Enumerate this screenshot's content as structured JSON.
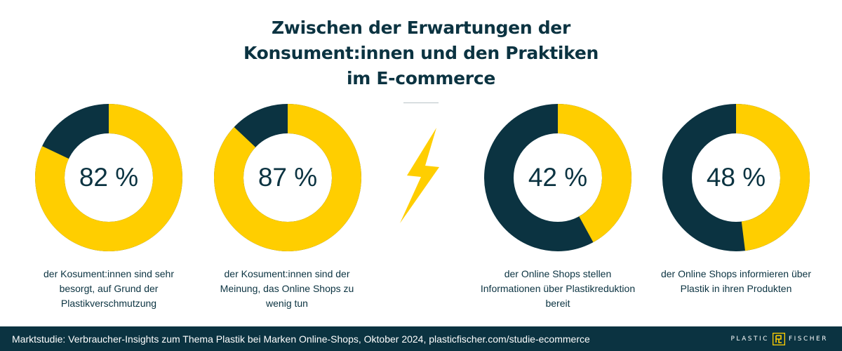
{
  "title_lines": [
    "Zwischen der Erwartungen der",
    "Konsument:innen und den Praktiken",
    "im E-commerce"
  ],
  "colors": {
    "dark": "#0b3341",
    "accent": "#ffce00",
    "background": "#ffffff"
  },
  "chart_data": {
    "type": "pie",
    "series": [
      {
        "value": 82,
        "label": "82 %",
        "caption": "der Kosument:innen sind sehr besorgt, auf Grund der Plastikverschmutzung"
      },
      {
        "value": 87,
        "label": "87 %",
        "caption": "der Kosument:innen sind der Meinung, das Online Shops zu wenig tun"
      },
      {
        "value": 42,
        "label": "42 %",
        "caption": "der Online Shops stellen Informationen über Plastikreduktion bereit"
      },
      {
        "value": 48,
        "label": "48 %",
        "caption": "der Online Shops informieren über Plastik in ihren Produkten"
      }
    ]
  },
  "icons": {
    "bolt": "lightning-bolt-icon",
    "logo": "plastic-fischer-logo"
  },
  "footer": {
    "source": "Marktstudie: Verbraucher-Insights zum Thema Plastik bei Marken Online-Shops, Oktober 2024, plasticfischer.com/studie-ecommerce",
    "logo_left": "PLASTIC",
    "logo_right": "FISCHER"
  }
}
